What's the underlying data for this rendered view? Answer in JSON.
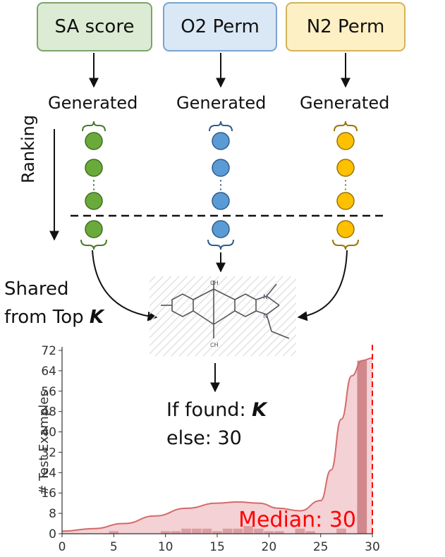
{
  "boxes": {
    "sa": "SA score",
    "o2": "O2 Perm",
    "n2": "N2 Perm"
  },
  "generated_label": "Generated",
  "ranking_label": "Ranking",
  "ellipsis": "⋮",
  "shared": {
    "line1": "Shared",
    "line2_prefix": "from Top",
    "line2_k": "K"
  },
  "result": {
    "line1_prefix": "If  found:",
    "line1_k": "K",
    "line2": "else: 30"
  },
  "colors": {
    "green": "#6aaa3a",
    "blue": "#5b9bd5",
    "yellow": "#ffc000",
    "chart_fill": "#f2c9cc",
    "chart_line": "#d46a6a",
    "median": "#ff0000"
  },
  "chart_data": {
    "type": "bar",
    "ylabel": "# Test Examples",
    "xlabel": "",
    "xlim": [
      0,
      30
    ],
    "ylim": [
      0,
      72
    ],
    "xticks": [
      0,
      5,
      10,
      15,
      20,
      25,
      30
    ],
    "yticks": [
      0,
      8,
      16,
      24,
      32,
      40,
      48,
      56,
      64,
      72
    ],
    "bars": [
      {
        "x": 5,
        "value": 1
      },
      {
        "x": 10,
        "value": 1
      },
      {
        "x": 11,
        "value": 1
      },
      {
        "x": 12,
        "value": 2
      },
      {
        "x": 13,
        "value": 2
      },
      {
        "x": 14,
        "value": 2
      },
      {
        "x": 15,
        "value": 1
      },
      {
        "x": 16,
        "value": 2
      },
      {
        "x": 17,
        "value": 2
      },
      {
        "x": 18,
        "value": 3
      },
      {
        "x": 19,
        "value": 2
      },
      {
        "x": 20,
        "value": 1
      },
      {
        "x": 21,
        "value": 1
      },
      {
        "x": 23,
        "value": 2
      },
      {
        "x": 24,
        "value": 1
      },
      {
        "x": 27,
        "value": 2
      },
      {
        "x": 29,
        "value": 68
      }
    ],
    "kde": [
      [
        0,
        1
      ],
      [
        3,
        2
      ],
      [
        6,
        4
      ],
      [
        9,
        7
      ],
      [
        12,
        10
      ],
      [
        15,
        12
      ],
      [
        17,
        12.5
      ],
      [
        19,
        12
      ],
      [
        21,
        10
      ],
      [
        23,
        9
      ],
      [
        25,
        13
      ],
      [
        26,
        25
      ],
      [
        27,
        45
      ],
      [
        28,
        62
      ],
      [
        29,
        68
      ],
      [
        30,
        69
      ]
    ],
    "median": {
      "value": 30,
      "label": "Median: 30"
    }
  }
}
